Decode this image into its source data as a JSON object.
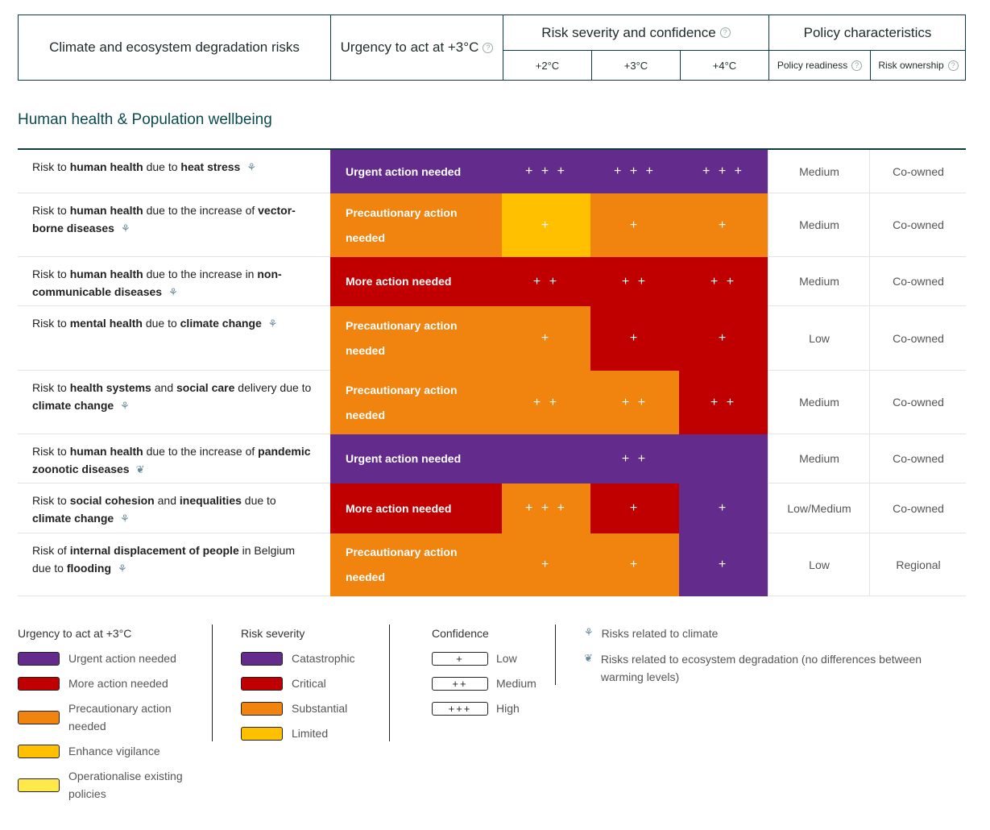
{
  "header": {
    "risks": "Climate and ecosystem degradation risks",
    "urgency": "Urgency to act at +3°C",
    "severity": "Risk severity and confidence",
    "policy": "Policy characteristics",
    "temps": [
      "+2°C",
      "+3°C",
      "+4°C"
    ],
    "readiness": "Policy readiness",
    "ownership": "Risk ownership",
    "help": "?"
  },
  "section_title": "Human health & Population wellbeing",
  "colors": {
    "purple": "#632c8c",
    "red": "#c00000",
    "orange": "#f0840f",
    "yellow": "#ffc000",
    "lightyellow": "#ffe94a",
    "teal": "#0b4b4f"
  },
  "rows": [
    {
      "label": [
        {
          "t": "Risk to "
        },
        {
          "t": "human health",
          "b": 1
        },
        {
          "t": " due to "
        },
        {
          "t": "heat stress",
          "b": 1
        }
      ],
      "icon": "climate-icon",
      "urgency": "Urgent action needed",
      "urgency_color": "purple",
      "cells": [
        {
          "c": "purple",
          "v": "+++"
        },
        {
          "c": "purple",
          "v": "+++"
        },
        {
          "c": "purple",
          "v": "+++"
        }
      ],
      "readiness": "Medium",
      "ownership": "Co-owned"
    },
    {
      "label": [
        {
          "t": "Risk to "
        },
        {
          "t": "human health",
          "b": 1
        },
        {
          "t": " due to the increase of "
        },
        {
          "t": "vector-borne diseases",
          "b": 1
        }
      ],
      "icon": "climate-icon",
      "urgency": "Precautionary action needed",
      "urgency_color": "orange",
      "cells": [
        {
          "c": "yellow",
          "v": "+"
        },
        {
          "c": "orange",
          "v": "+"
        },
        {
          "c": "orange",
          "v": "+"
        }
      ],
      "readiness": "Medium",
      "ownership": "Co-owned"
    },
    {
      "label": [
        {
          "t": "Risk to "
        },
        {
          "t": "human health",
          "b": 1
        },
        {
          "t": " due to the increase in "
        },
        {
          "t": "non-communicable diseases",
          "b": 1
        }
      ],
      "icon": "climate-icon",
      "urgency": "More action needed",
      "urgency_color": "red",
      "cells": [
        {
          "c": "red",
          "v": "++"
        },
        {
          "c": "red",
          "v": "++"
        },
        {
          "c": "red",
          "v": "++"
        }
      ],
      "readiness": "Medium",
      "ownership": "Co-owned"
    },
    {
      "label": [
        {
          "t": "Risk to "
        },
        {
          "t": "mental health",
          "b": 1
        },
        {
          "t": " due to "
        },
        {
          "t": "climate change",
          "b": 1
        }
      ],
      "icon": "climate-icon",
      "urgency": "Precautionary action needed",
      "urgency_color": "orange",
      "cells": [
        {
          "c": "orange",
          "v": "+"
        },
        {
          "c": "red",
          "v": "+"
        },
        {
          "c": "red",
          "v": "+"
        }
      ],
      "readiness": "Low",
      "ownership": "Co-owned"
    },
    {
      "label": [
        {
          "t": "Risk to "
        },
        {
          "t": "health systems",
          "b": 1
        },
        {
          "t": " and "
        },
        {
          "t": "social care",
          "b": 1
        },
        {
          "t": " delivery due to "
        },
        {
          "t": "climate change",
          "b": 1
        }
      ],
      "icon": "climate-icon",
      "urgency": "Precautionary action needed",
      "urgency_color": "orange",
      "cells": [
        {
          "c": "orange",
          "v": "++"
        },
        {
          "c": "orange",
          "v": "++"
        },
        {
          "c": "red",
          "v": "++"
        }
      ],
      "readiness": "Medium",
      "ownership": "Co-owned"
    },
    {
      "label": [
        {
          "t": "Risk to "
        },
        {
          "t": "human health",
          "b": 1
        },
        {
          "t": " due to the increase of "
        },
        {
          "t": "pandemic zoonotic diseases",
          "b": 1
        }
      ],
      "icon": "leaf-icon",
      "urgency": "Urgent action needed",
      "urgency_color": "purple",
      "cells": [
        {
          "c": "purple",
          "v": "++",
          "span": 3
        }
      ],
      "readiness": "Medium",
      "ownership": "Co-owned"
    },
    {
      "label": [
        {
          "t": "Risk to "
        },
        {
          "t": "social cohesion",
          "b": 1
        },
        {
          "t": " and "
        },
        {
          "t": "inequalities",
          "b": 1
        },
        {
          "t": " due to "
        },
        {
          "t": "climate change",
          "b": 1
        }
      ],
      "icon": "climate-icon",
      "urgency": "More action needed",
      "urgency_color": "red",
      "cells": [
        {
          "c": "orange",
          "v": "+++"
        },
        {
          "c": "red",
          "v": "+"
        },
        {
          "c": "purple",
          "v": "+"
        }
      ],
      "readiness": "Low/Medium",
      "ownership": "Co-owned"
    },
    {
      "label": [
        {
          "t": "Risk of "
        },
        {
          "t": "internal displacement of people",
          "b": 1
        },
        {
          "t": " in Belgium due to "
        },
        {
          "t": "flooding",
          "b": 1
        }
      ],
      "icon": "climate-icon",
      "urgency": "Precautionary action needed",
      "urgency_color": "orange",
      "cells": [
        {
          "c": "orange",
          "v": "+"
        },
        {
          "c": "orange",
          "v": "+"
        },
        {
          "c": "purple",
          "v": "+"
        }
      ],
      "readiness": "Low",
      "ownership": "Regional"
    }
  ],
  "legend": {
    "urgency": {
      "title": "Urgency to act at +3°C",
      "items": [
        {
          "label": "Urgent action needed",
          "color": "purple"
        },
        {
          "label": "More action needed",
          "color": "red"
        },
        {
          "label": "Precautionary action needed",
          "color": "orange"
        },
        {
          "label": "Enhance vigilance",
          "color": "yellow"
        },
        {
          "label": "Operationalise existing policies",
          "color": "lightyellow"
        }
      ]
    },
    "severity": {
      "title": "Risk severity",
      "items": [
        {
          "label": "Catastrophic",
          "color": "purple"
        },
        {
          "label": "Critical",
          "color": "red"
        },
        {
          "label": "Substantial",
          "color": "orange"
        },
        {
          "label": "Limited",
          "color": "yellow"
        }
      ]
    },
    "confidence": {
      "title": "Confidence",
      "items": [
        {
          "symbol": "+",
          "label": "Low"
        },
        {
          "symbol": "++",
          "label": "Medium"
        },
        {
          "symbol": "+++",
          "label": "High"
        }
      ]
    },
    "icons": [
      {
        "icon": "climate-icon",
        "label": "Risks related to climate"
      },
      {
        "icon": "leaf-icon",
        "label": "Risks related to ecosystem degradation (no differences between warming levels)"
      }
    ]
  }
}
